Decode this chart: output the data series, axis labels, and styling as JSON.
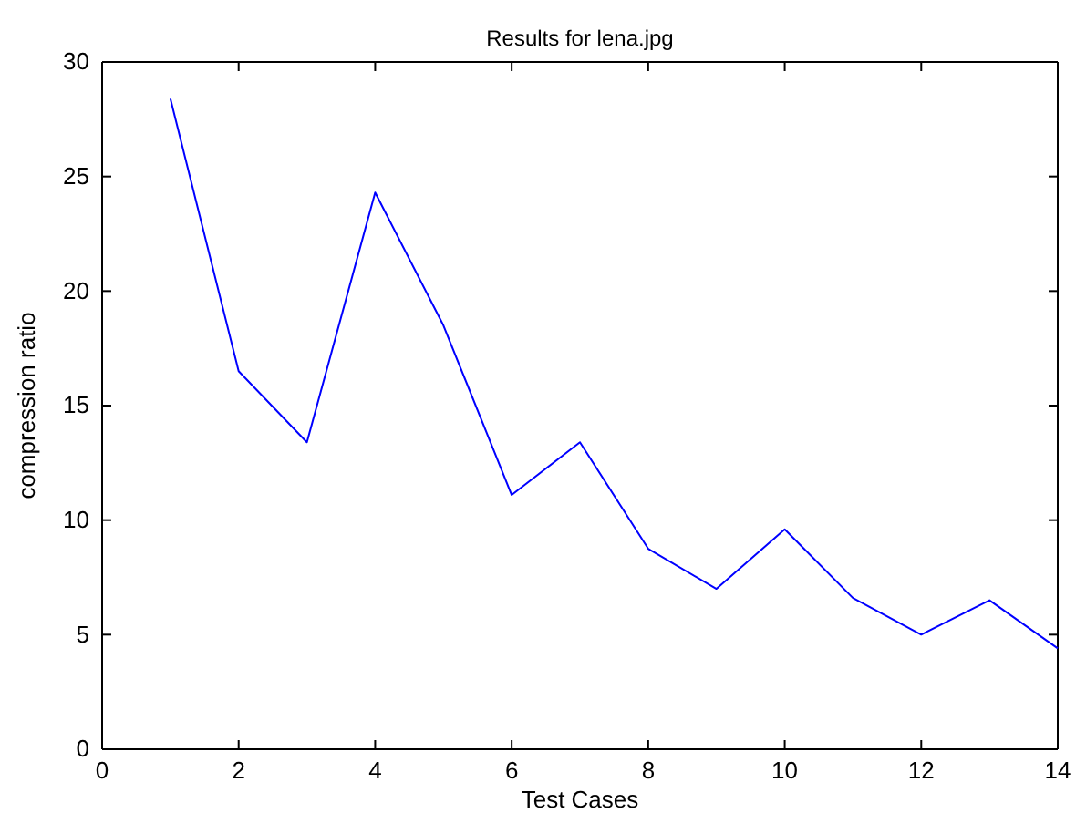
{
  "chart_data": {
    "type": "line",
    "title": "Results for lena.jpg",
    "xlabel": "Test Cases",
    "ylabel": "compression ratio",
    "x": [
      1,
      2,
      3,
      4,
      5,
      6,
      7,
      8,
      9,
      10,
      11,
      12,
      13,
      14
    ],
    "series": [
      {
        "color": "#0000ff",
        "values": [
          28.4,
          16.5,
          13.4,
          24.3,
          18.5,
          11.1,
          13.4,
          8.75,
          7.0,
          9.6,
          6.6,
          5.0,
          6.5,
          4.4
        ]
      }
    ],
    "xlim": [
      0,
      14
    ],
    "xticks": [
      0,
      2,
      4,
      6,
      8,
      10,
      12,
      14
    ],
    "ylim": [
      0,
      30
    ],
    "yticks": [
      0,
      5,
      10,
      15,
      20,
      25,
      30
    ],
    "grid": false,
    "marker": "none",
    "line_style": "solid"
  }
}
